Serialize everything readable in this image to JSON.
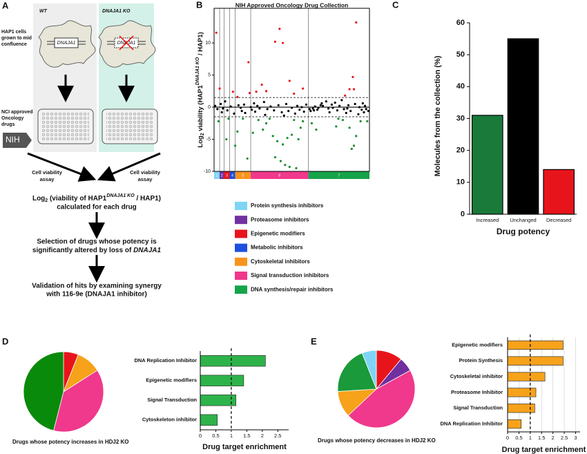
{
  "panel_labels": [
    "A",
    "B",
    "C",
    "D",
    "E"
  ],
  "panel_a": {
    "wt_label": "WT",
    "ko_label": "DNAJA1 KO",
    "cell_gene": "DNAJA1",
    "ko_cell_gene": "DNAJA1",
    "cells_note": [
      "HAP1 cells",
      "grown to mid",
      "confluence"
    ],
    "drugs_note": [
      "NCI approved",
      "Oncology",
      "drugs"
    ],
    "nih": "NIH",
    "assay_left": [
      "Cell viability",
      "assay"
    ],
    "assay_right": [
      "Cell viability",
      "assay"
    ],
    "step1": {
      "pre": "Log",
      "sub": "2",
      "mid": " (viability of HAP1",
      "sup": "DNAJA1 KO",
      "post": " / HAP1)",
      "line2": "calculated for each drug"
    },
    "step2": {
      "line1": "Selection of drugs whose potency is",
      "line2": "significantly altered by loss of ",
      "line2_italic": "DNAJA1"
    },
    "step3": [
      "Validation of hits by examining synergy",
      "with 116-9e (DNAJA1 inhibitor)"
    ]
  },
  "chart_data": [
    {
      "type": "scatter",
      "title": "NIH Approved Oncology Drug Collection",
      "ylabel": {
        "pre": "Log",
        "sub": "2",
        "mid": " viability (HAP1",
        "sup": "DNAJA1 KO",
        "post": " / HAP1)"
      },
      "xlim": [
        0,
        140
      ],
      "ylim": [
        -10,
        15.4
      ],
      "yticks": [
        -10,
        -5,
        0,
        5,
        10
      ],
      "thresholds": [
        1.5,
        -1.5
      ],
      "groups": [
        {
          "label": "1",
          "name": "Protein synthesis inhibitors",
          "color": "#7fd4f5",
          "range": [
            0,
            5
          ]
        },
        {
          "label": "2",
          "name": "Proteasome inhibitors",
          "color": "#7030a0",
          "range": [
            5,
            9
          ]
        },
        {
          "label": "3",
          "name": "Epigenetic modifiers",
          "color": "#e8141c",
          "range": [
            9,
            14
          ]
        },
        {
          "label": "4",
          "name": "Metabolic inhibitors",
          "color": "#1f4fe0",
          "range": [
            14,
            19
          ]
        },
        {
          "label": "5",
          "name": "Cytoskeletal inhibitors",
          "color": "#f7941d",
          "range": [
            19,
            33
          ]
        },
        {
          "label": "6",
          "name": "Signal transduction inhibitors",
          "color": "#f0388c",
          "range": [
            33,
            85
          ]
        },
        {
          "label": "7",
          "name": "DNA synthesis/repair inhibitors",
          "color": "#16a34a",
          "range": [
            85,
            140
          ]
        }
      ],
      "series": [
        {
          "color": "#e8141c",
          "x": [
            2,
            5,
            17,
            21,
            31,
            32,
            38,
            43,
            47,
            55,
            59,
            62,
            68,
            72,
            80,
            118,
            122,
            125,
            128,
            126
          ],
          "values": [
            11.6,
            2.9,
            2.4,
            1.6,
            7.0,
            2.2,
            2.4,
            3.5,
            2.5,
            10.2,
            12.2,
            10.0,
            4.1,
            2.1,
            2.9,
            1.8,
            2.8,
            4.7,
            13.2,
            2.8
          ]
        },
        {
          "color": "#000000",
          "x": [
            1,
            3,
            6,
            7,
            8,
            10,
            12,
            15,
            18,
            22,
            24,
            25,
            27,
            28,
            33,
            34,
            36,
            37,
            39,
            41,
            45,
            46,
            48,
            51,
            54,
            58,
            61,
            63,
            65,
            67,
            70,
            73,
            75,
            77,
            79,
            81,
            83,
            86,
            87,
            89,
            90,
            91,
            93,
            94,
            96,
            97,
            98,
            101,
            103,
            104,
            106,
            107,
            109,
            111,
            113,
            115,
            117,
            119,
            120,
            121,
            123,
            127,
            130,
            131,
            133,
            134,
            135,
            136,
            137,
            139
          ],
          "values": [
            0.2,
            -0.3,
            0.5,
            -0.8,
            -0.2,
            0.9,
            -0.5,
            0.1,
            -1.0,
            0.3,
            -0.1,
            -0.6,
            0.4,
            -0.9,
            0.0,
            -0.4,
            0.6,
            -0.7,
            0.2,
            -0.2,
            0.8,
            -1.2,
            -0.3,
            0.1,
            -0.5,
            0.3,
            -0.8,
            -1.3,
            0.5,
            -0.6,
            -0.1,
            -1.0,
            0.2,
            -0.4,
            0.0,
            -0.7,
            0.4,
            -0.3,
            -0.6,
            -0.2,
            -0.5,
            0.1,
            -0.4,
            -0.1,
            0.3,
            0.6,
            0.2,
            0.9,
            -0.2,
            -0.8,
            0.4,
            -0.1,
            0.7,
            -0.5,
            0.2,
            1.1,
            -0.3,
            -0.9,
            -0.2,
            0.3,
            -0.6,
            0.5,
            -1.1,
            0.0,
            -0.4,
            0.6,
            -0.8,
            0.2,
            -0.3,
            -0.6
          ]
        },
        {
          "color": "#1a8a2e",
          "x": [
            4,
            11,
            13,
            19,
            21,
            26,
            30,
            35,
            40,
            44,
            47,
            50,
            53,
            55,
            57,
            60,
            62,
            64,
            66,
            68,
            70,
            72,
            74,
            76,
            78,
            80,
            88,
            92,
            110,
            112,
            116,
            122,
            124,
            126,
            128,
            132,
            138
          ],
          "values": [
            -2.2,
            -5.0,
            -1.8,
            -6.0,
            -3.8,
            -1.8,
            -8.0,
            -4.0,
            -2.0,
            -3.5,
            -2.5,
            -1.8,
            -4.5,
            -7.8,
            -5.3,
            -8.4,
            -5.8,
            -9.0,
            -4.8,
            -9.3,
            -4.3,
            -2.0,
            -9.5,
            -5.0,
            -3.2,
            -2.2,
            -2.5,
            -3.5,
            -3.0,
            -1.8,
            -2.0,
            -3.2,
            -6.5,
            -6.0,
            -4.5,
            -2.2,
            -2.2
          ]
        }
      ]
    },
    {
      "type": "bar",
      "categories": [
        "Increased",
        "Unchanged",
        "Decreased"
      ],
      "values": [
        31,
        55,
        14
      ],
      "colors": [
        "#1a7a3a",
        "#000000",
        "#e8141c"
      ],
      "ylim": [
        0,
        60
      ],
      "yticks": [
        0,
        10,
        20,
        30,
        40,
        50,
        60
      ],
      "ylabel": "Molecules from the collection (%)",
      "xlabel": "Drug potency"
    },
    {
      "type": "pie",
      "values": [
        6,
        10,
        38,
        46
      ],
      "colors": [
        "#e8141c",
        "#f7a21b",
        "#f0388c",
        "#0a8a0a"
      ],
      "caption": "Drugs whose potency increases in HDJ2 KO"
    },
    {
      "type": "hbar",
      "categories": [
        "DNA Replication Inhibitor",
        "Epigenetic modifiers",
        "Signal Transduction",
        "Cytoskeleton inhibitor"
      ],
      "values": [
        2.1,
        1.4,
        1.15,
        0.55
      ],
      "color": "#2db34a",
      "xlim": [
        0,
        2.85
      ],
      "xticks": [
        0,
        0.5,
        1,
        1.5,
        2,
        2.5
      ],
      "reference_line": 1,
      "grid": false,
      "xlabel": "Drug target enrichment"
    },
    {
      "type": "pie",
      "values": [
        11,
        6,
        46,
        11,
        20,
        6
      ],
      "colors": [
        "#e8141c",
        "#7030a0",
        "#f0388c",
        "#f7a21b",
        "#1a9a3a",
        "#7fd4f5"
      ],
      "caption": "Drugs whose potency decreases in HDJ2 KO"
    },
    {
      "type": "hbar",
      "categories": [
        "Epigenetic modifiers",
        "Protein Synthesis",
        "Cytoskeletal inhibitor",
        "Proteasome Inhibitor",
        "Signal Transduction",
        "DNA Replication Inhibitor"
      ],
      "values": [
        2.45,
        2.45,
        1.65,
        1.25,
        1.2,
        0.6
      ],
      "color": "#f7a21b",
      "xlim": [
        0,
        3.2
      ],
      "xticks": [
        0,
        0.5,
        1,
        1.5,
        2,
        2.5,
        3
      ],
      "reference_line": 1,
      "grid": true,
      "xlabel": "Drug target enrichment"
    }
  ]
}
